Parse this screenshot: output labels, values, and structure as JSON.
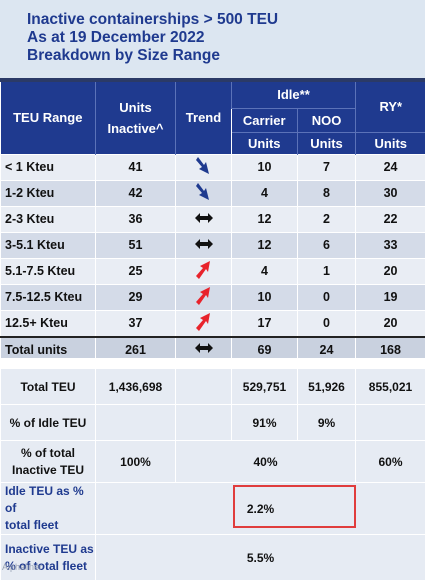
{
  "title": {
    "line1": "Inactive containerships > 500 TEU",
    "line2": "As at 19 December 2022",
    "line3": "Breakdown by Size Range"
  },
  "header": {
    "teu_range": "TEU Range",
    "units_inactive_1": "Units",
    "units_inactive_2": "Inactive^",
    "trend": "Trend",
    "idle": "Idle**",
    "carrier": "Carrier",
    "noo": "NOO",
    "ry": "RY*",
    "units": "Units"
  },
  "rows": [
    {
      "range": "< 1 Kteu",
      "inactive": "41",
      "trend": "down-arrow-icon",
      "carrier": "10",
      "noo": "7",
      "ry": "24"
    },
    {
      "range": "1-2 Kteu",
      "inactive": "42",
      "trend": "down-arrow-icon",
      "carrier": "4",
      "noo": "8",
      "ry": "30"
    },
    {
      "range": "2-3 Kteu",
      "inactive": "36",
      "trend": "flat-arrow-icon",
      "carrier": "12",
      "noo": "2",
      "ry": "22"
    },
    {
      "range": "3-5.1 Kteu",
      "inactive": "51",
      "trend": "flat-arrow-icon",
      "carrier": "12",
      "noo": "6",
      "ry": "33"
    },
    {
      "range": "5.1-7.5 Kteu",
      "inactive": "25",
      "trend": "up-arrow-icon",
      "carrier": "4",
      "noo": "1",
      "ry": "20"
    },
    {
      "range": "7.5-12.5 Kteu",
      "inactive": "29",
      "trend": "up-arrow-icon",
      "carrier": "10",
      "noo": "0",
      "ry": "19"
    },
    {
      "range": "12.5+ Kteu",
      "inactive": "37",
      "trend": "up-arrow-icon",
      "carrier": "17",
      "noo": "0",
      "ry": "20"
    }
  ],
  "total": {
    "range": "Total units",
    "inactive": "261",
    "trend": "flat-arrow-icon",
    "carrier": "69",
    "noo": "24",
    "ry": "168"
  },
  "summary": {
    "total_teu": {
      "label": "Total TEU",
      "inactive": "1,436,698",
      "carrier": "529,751",
      "noo": "51,926",
      "ry": "855,021"
    },
    "pct_idle": {
      "label": "% of Idle TEU",
      "carrier": "91%",
      "noo": "9%"
    },
    "pct_total_inactive": {
      "label_1": "% of total",
      "label_2": "Inactive TEU",
      "inactive": "100%",
      "idle": "40%",
      "ry": "60%"
    },
    "idle_pct_fleet": {
      "label_1": "Idle TEU as % of",
      "label_2": "total fleet",
      "value": "2.2%"
    },
    "inactive_pct_fleet": {
      "label_1": "Inactive TEU as",
      "label_2": "% of total fleet",
      "value": "5.5%"
    }
  },
  "watermark": "Alphaliner",
  "colors": {
    "header_bg": "#1f3a8f",
    "title_text": "#1f3a8f",
    "arrow_down": "#1f3a8f",
    "arrow_up": "#e8232b",
    "highlight": "#e03c3c"
  }
}
